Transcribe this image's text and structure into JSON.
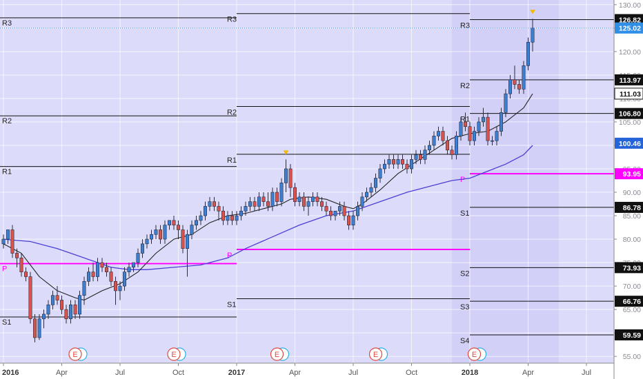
{
  "colors": {
    "background": "#dcdcfa",
    "shade": "#d2d0f7",
    "axis_bg": "#ffffff",
    "up_candle": "#3d7fd1",
    "down_candle": "#d9534f",
    "wick": "#2a2a3a",
    "ma_short": "#222222",
    "ma_long": "#4a3fd6",
    "pivot_line": "#ff00ff",
    "level_line": "#111111",
    "grid": "#ffffff",
    "last_price_tag": "#2f8ee5",
    "ma_long_tag": "#2563d8",
    "pivot_tag": "#ff00ff",
    "level_tag": "#111111"
  },
  "chart_data": {
    "type": "candlestick",
    "title": "",
    "xlabel": "",
    "ylabel": "",
    "ylim": [
      54,
      131
    ],
    "y_ticks": [
      55,
      60,
      65,
      70,
      75,
      80,
      85,
      90,
      95,
      100,
      105,
      110,
      115,
      120,
      125,
      130
    ],
    "y_tick_labels": [
      "55.00",
      "60.00",
      "65.00",
      "70.00",
      "75.00",
      "80.00",
      "85.00",
      "90.00",
      "95.00",
      "100.00",
      "105.00",
      "110.00",
      "115.00",
      "120.00",
      "125.00",
      "130.00"
    ],
    "x_ticks": [
      {
        "label": "2016",
        "bold": true,
        "t": 0
      },
      {
        "label": "Apr",
        "bold": false,
        "t": 13
      },
      {
        "label": "Jul",
        "bold": false,
        "t": 26
      },
      {
        "label": "Oct",
        "bold": false,
        "t": 39
      },
      {
        "label": "2017",
        "bold": true,
        "t": 52
      },
      {
        "label": "Apr",
        "bold": false,
        "t": 65
      },
      {
        "label": "Jul",
        "bold": false,
        "t": 78
      },
      {
        "label": "Oct",
        "bold": false,
        "t": 91
      },
      {
        "label": "2018",
        "bold": true,
        "t": 104
      },
      {
        "label": "Apr",
        "bold": false,
        "t": 117
      },
      {
        "label": "Jul",
        "bold": false,
        "t": 130
      }
    ],
    "candles": [
      [
        0,
        79,
        81,
        78,
        80
      ],
      [
        1,
        80,
        82,
        79,
        82
      ],
      [
        2,
        82,
        83,
        76,
        77
      ],
      [
        3,
        77,
        78,
        74,
        76
      ],
      [
        4,
        76,
        77,
        72,
        73
      ],
      [
        5,
        73,
        74,
        71,
        72
      ],
      [
        6,
        72,
        73,
        62,
        63
      ],
      [
        7,
        63,
        64,
        58,
        59
      ],
      [
        8,
        59,
        64,
        58.5,
        63
      ],
      [
        9,
        63,
        65,
        61,
        64
      ],
      [
        10,
        64,
        67,
        63,
        66
      ],
      [
        11,
        66,
        69,
        65,
        68
      ],
      [
        12,
        68,
        70,
        66,
        67
      ],
      [
        13,
        67,
        68,
        64,
        65
      ],
      [
        14,
        65,
        66,
        62,
        63
      ],
      [
        15,
        63,
        67,
        62,
        66
      ],
      [
        16,
        66,
        67,
        63,
        64
      ],
      [
        17,
        64,
        69,
        63,
        68
      ],
      [
        18,
        68,
        72,
        66,
        71
      ],
      [
        19,
        71,
        74,
        70,
        73
      ],
      [
        20,
        73,
        75,
        71,
        72
      ],
      [
        21,
        72,
        76,
        71,
        75
      ],
      [
        22,
        75,
        76,
        73,
        74
      ],
      [
        23,
        74,
        75,
        72,
        73
      ],
      [
        24,
        73,
        74,
        70,
        71
      ],
      [
        25,
        71,
        72,
        66,
        69
      ],
      [
        26,
        69,
        71,
        67,
        70
      ],
      [
        27,
        70,
        74,
        69,
        73
      ],
      [
        28,
        73,
        75,
        72,
        74
      ],
      [
        29,
        74,
        75,
        73,
        75
      ],
      [
        30,
        75,
        78,
        74,
        77
      ],
      [
        31,
        77,
        80,
        76,
        79
      ],
      [
        32,
        79,
        81,
        78,
        80
      ],
      [
        33,
        80,
        82,
        79,
        81
      ],
      [
        34,
        81,
        83,
        80,
        82
      ],
      [
        35,
        82,
        83,
        79,
        80
      ],
      [
        36,
        80,
        84,
        79,
        83
      ],
      [
        37,
        83,
        84,
        82,
        84
      ],
      [
        38,
        84,
        85,
        82,
        83
      ],
      [
        39,
        83,
        84,
        80,
        82
      ],
      [
        40,
        82,
        83,
        77,
        78
      ],
      [
        41,
        78,
        82,
        72,
        81
      ],
      [
        42,
        81,
        84,
        80,
        83
      ],
      [
        43,
        83,
        85,
        82,
        84
      ],
      [
        44,
        84,
        86,
        83,
        85
      ],
      [
        45,
        85,
        88,
        84,
        87
      ],
      [
        46,
        87,
        89,
        86,
        88
      ],
      [
        47,
        88,
        89,
        86,
        87
      ],
      [
        48,
        87,
        88,
        84,
        86
      ],
      [
        49,
        86,
        87,
        83,
        84
      ],
      [
        50,
        84,
        86,
        83,
        85
      ],
      [
        51,
        85,
        86,
        83,
        84
      ],
      [
        52,
        84,
        86,
        83,
        85
      ],
      [
        53,
        85,
        87,
        84,
        86
      ],
      [
        54,
        86,
        88,
        85,
        87
      ],
      [
        55,
        87,
        89,
        86,
        88
      ],
      [
        56,
        88,
        89,
        86,
        87
      ],
      [
        57,
        87,
        90,
        86,
        89
      ],
      [
        58,
        89,
        90,
        87,
        88
      ],
      [
        59,
        88,
        90,
        86,
        87
      ],
      [
        60,
        87,
        91,
        86,
        90
      ],
      [
        61,
        90,
        91,
        87,
        88
      ],
      [
        62,
        88,
        93,
        87,
        92
      ],
      [
        63,
        92,
        97,
        90,
        95
      ],
      [
        64,
        95,
        96,
        89,
        91
      ],
      [
        65,
        91,
        92,
        87,
        88
      ],
      [
        66,
        88,
        90,
        87,
        89
      ],
      [
        67,
        89,
        90,
        86,
        87
      ],
      [
        68,
        87,
        89,
        85,
        88
      ],
      [
        69,
        88,
        90,
        87,
        89
      ],
      [
        70,
        89,
        90,
        87,
        88
      ],
      [
        71,
        88,
        89,
        86,
        87
      ],
      [
        72,
        87,
        88,
        85,
        86
      ],
      [
        73,
        86,
        87,
        84,
        85
      ],
      [
        74,
        85,
        86,
        84,
        86
      ],
      [
        75,
        86,
        88,
        85,
        87
      ],
      [
        76,
        87,
        88,
        84,
        85
      ],
      [
        77,
        85,
        86,
        82,
        83
      ],
      [
        78,
        83,
        86,
        82,
        85
      ],
      [
        79,
        85,
        88,
        84,
        87
      ],
      [
        80,
        87,
        90,
        86,
        89
      ],
      [
        81,
        89,
        91,
        88,
        90
      ],
      [
        82,
        90,
        92,
        89,
        91
      ],
      [
        83,
        91,
        94,
        90,
        93
      ],
      [
        84,
        93,
        96,
        92,
        95
      ],
      [
        85,
        95,
        97,
        94,
        96
      ],
      [
        86,
        96,
        98,
        95,
        97
      ],
      [
        87,
        97,
        98,
        95,
        96
      ],
      [
        88,
        96,
        98,
        95,
        97
      ],
      [
        89,
        97,
        98,
        95,
        96
      ],
      [
        90,
        96,
        97,
        94,
        95
      ],
      [
        91,
        95,
        98,
        94,
        97
      ],
      [
        92,
        97,
        99,
        96,
        98
      ],
      [
        93,
        98,
        99,
        96,
        97
      ],
      [
        94,
        97,
        100,
        96,
        99
      ],
      [
        95,
        99,
        101,
        98,
        100
      ],
      [
        96,
        100,
        103,
        99,
        102
      ],
      [
        97,
        102,
        104,
        101,
        103
      ],
      [
        98,
        103,
        104,
        100,
        101
      ],
      [
        99,
        101,
        102,
        98,
        99
      ],
      [
        100,
        99,
        100,
        97,
        98
      ],
      [
        101,
        98,
        103,
        97,
        102
      ],
      [
        102,
        102,
        106,
        101,
        105
      ],
      [
        103,
        105,
        107,
        103,
        104
      ],
      [
        104,
        104,
        105,
        100,
        101
      ],
      [
        105,
        101,
        104,
        100,
        103
      ],
      [
        106,
        103,
        106,
        102,
        105
      ],
      [
        107,
        105,
        108,
        104,
        106
      ],
      [
        108,
        106,
        107,
        100,
        101
      ],
      [
        109,
        101,
        102,
        100,
        101
      ],
      [
        110,
        101,
        104,
        100,
        103
      ],
      [
        111,
        103,
        108,
        102,
        107
      ],
      [
        112,
        107,
        112,
        106,
        111
      ],
      [
        113,
        111,
        115,
        110,
        114
      ],
      [
        114,
        114,
        117,
        112,
        113
      ],
      [
        115,
        113,
        114,
        111,
        112
      ],
      [
        116,
        112,
        118,
        111,
        117
      ],
      [
        117,
        117,
        123,
        116,
        122
      ],
      [
        118,
        122,
        127,
        120,
        125
      ]
    ],
    "ma_short": [
      [
        0,
        79
      ],
      [
        4,
        77
      ],
      [
        8,
        72
      ],
      [
        12,
        69
      ],
      [
        16,
        67.5
      ],
      [
        18,
        67
      ],
      [
        22,
        69
      ],
      [
        26,
        70.5
      ],
      [
        30,
        73
      ],
      [
        34,
        77
      ],
      [
        38,
        80
      ],
      [
        42,
        81
      ],
      [
        46,
        83.5
      ],
      [
        50,
        85
      ],
      [
        54,
        85.5
      ],
      [
        58,
        86.5
      ],
      [
        62,
        87.5
      ],
      [
        64,
        88.5
      ],
      [
        68,
        89
      ],
      [
        72,
        88.5
      ],
      [
        76,
        87
      ],
      [
        78,
        86.5
      ],
      [
        80,
        87.5
      ],
      [
        84,
        90.5
      ],
      [
        88,
        94
      ],
      [
        92,
        96.5
      ],
      [
        96,
        99
      ],
      [
        100,
        101.5
      ],
      [
        104,
        102.5
      ],
      [
        108,
        103
      ],
      [
        112,
        105
      ],
      [
        116,
        108
      ],
      [
        118,
        111
      ]
    ],
    "ma_long": [
      [
        0,
        80
      ],
      [
        6,
        79.5
      ],
      [
        12,
        78
      ],
      [
        18,
        76
      ],
      [
        24,
        74
      ],
      [
        28,
        73.5
      ],
      [
        32,
        73.5
      ],
      [
        38,
        74
      ],
      [
        44,
        74.5
      ],
      [
        50,
        76
      ],
      [
        54,
        78
      ],
      [
        60,
        80.5
      ],
      [
        66,
        83
      ],
      [
        72,
        85
      ],
      [
        78,
        86
      ],
      [
        84,
        88
      ],
      [
        90,
        90
      ],
      [
        96,
        91.5
      ],
      [
        100,
        92.5
      ],
      [
        104,
        93
      ],
      [
        108,
        94.5
      ],
      [
        112,
        96
      ],
      [
        116,
        98
      ],
      [
        118,
        100
      ]
    ],
    "pivot_segments": [
      {
        "x0": 0,
        "x1": 52,
        "levels": [
          {
            "label": "R3",
            "value": 127.2
          },
          {
            "label": "R2",
            "value": 106.3
          },
          {
            "label": "R1",
            "value": 95.5
          },
          {
            "label": "P",
            "value": 74.8,
            "pivot": true
          },
          {
            "label": "S1",
            "value": 63.4
          }
        ]
      },
      {
        "x0": 52,
        "x1": 104,
        "levels": [
          {
            "label": "R3",
            "value": 128.1
          },
          {
            "label": "R2",
            "value": 108.3
          },
          {
            "label": "R1",
            "value": 98.1
          },
          {
            "label": "P",
            "value": 77.8,
            "pivot": true
          },
          {
            "label": "S1",
            "value": 67.3
          }
        ]
      },
      {
        "x0": 104,
        "x1": 128,
        "levels": [
          {
            "label": "R3",
            "value": 126.82
          },
          {
            "label": "R2",
            "value": 113.97
          },
          {
            "label": "R1",
            "value": 106.8
          },
          {
            "label": "P",
            "value": 93.95,
            "pivot": true
          },
          {
            "label": "S1",
            "value": 86.78
          },
          {
            "label": "S2",
            "value": 73.93
          },
          {
            "label": "S3",
            "value": 66.76
          },
          {
            "label": "S4",
            "value": 59.59
          }
        ]
      }
    ],
    "price_tags": [
      {
        "label": "126.82",
        "value": 126.82,
        "style": "level"
      },
      {
        "label": "125.02",
        "value": 125.02,
        "style": "last"
      },
      {
        "label": "113.97",
        "value": 113.97,
        "style": "level"
      },
      {
        "label": "111.03",
        "value": 111.03,
        "style": "ma_short"
      },
      {
        "label": "106.80",
        "value": 106.8,
        "style": "level"
      },
      {
        "label": "100.46",
        "value": 100.46,
        "style": "ma_long"
      },
      {
        "label": "93.95",
        "value": 93.95,
        "style": "pivot"
      },
      {
        "label": "86.78",
        "value": 86.78,
        "style": "level"
      },
      {
        "label": "73.93",
        "value": 73.93,
        "style": "level"
      },
      {
        "label": "66.76",
        "value": 66.76,
        "style": "level"
      },
      {
        "label": "59.59",
        "value": 59.59,
        "style": "level"
      }
    ],
    "last_price": 125.02,
    "high_markers": [
      {
        "t": 63,
        "value": 97
      },
      {
        "t": 118,
        "value": 127
      }
    ],
    "events": [
      {
        "t": 16,
        "label": "E"
      },
      {
        "t": 38,
        "label": "E"
      },
      {
        "t": 61,
        "label": "E"
      },
      {
        "t": 83,
        "label": "E"
      },
      {
        "t": 105,
        "label": "E"
      }
    ],
    "grid": true,
    "legend": "none"
  }
}
